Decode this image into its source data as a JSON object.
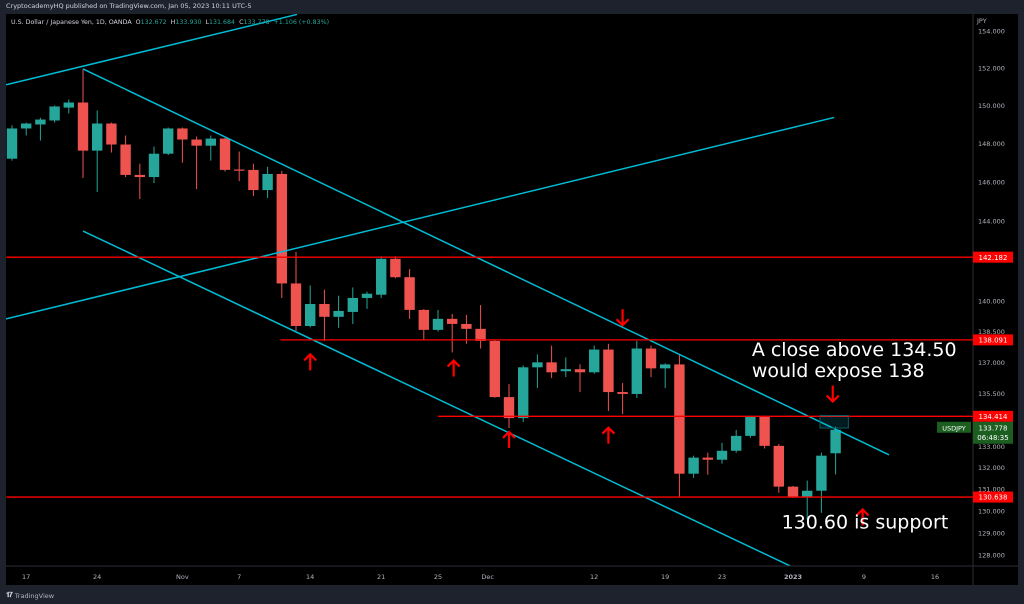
{
  "header": {
    "published": "CryptocademyHQ published on TradingView.com, Jan 05, 2023 10:11 UTC-5"
  },
  "legend": {
    "symbol_desc": "U.S. Dollar / Japanese Yen, 1D, OANDA",
    "o_label": "O",
    "o": "132.672",
    "h_label": "H",
    "h": "133.930",
    "l_label": "L",
    "l": "131.684",
    "c_label": "C",
    "c": "133.778",
    "change": "+1.106 (+0.83%)"
  },
  "footer": {
    "brand": "TradingView",
    "logo": "TV"
  },
  "colors": {
    "up": "#26a69a",
    "down": "#ef5350",
    "trendline": "#00bcd4",
    "level": "#ff0000",
    "annotation": "#ffffff",
    "last_price": "#1b5e20"
  },
  "chart_data": {
    "type": "candlestick",
    "symbol": "USDJPY",
    "currency": "JPY",
    "y_scale": "log",
    "ylim": [
      127.5,
      154.9
    ],
    "y_ticks": [
      "154.000",
      "152.000",
      "150.000",
      "148.000",
      "146.000",
      "144.000",
      "140.000",
      "138.500",
      "137.000",
      "135.500",
      "133.000",
      "132.000",
      "131.000",
      "130.000",
      "129.000",
      "128.000"
    ],
    "x_ticks": [
      {
        "label": "17",
        "bar": 2
      },
      {
        "label": "24",
        "bar": 7
      },
      {
        "label": "Nov",
        "bar": 13
      },
      {
        "label": "7",
        "bar": 17
      },
      {
        "label": "14",
        "bar": 22
      },
      {
        "label": "21",
        "bar": 27
      },
      {
        "label": "25",
        "bar": 31
      },
      {
        "label": "Dec",
        "bar": 34.5
      },
      {
        "label": "12",
        "bar": 42
      },
      {
        "label": "19",
        "bar": 47
      },
      {
        "label": "23",
        "bar": 51
      },
      {
        "label": "2023",
        "bar": 56,
        "bold": true
      },
      {
        "label": "9",
        "bar": 61
      },
      {
        "label": "16",
        "bar": 66
      }
    ],
    "candles": [
      [
        147.21,
        148.95,
        147.11,
        148.79
      ],
      [
        148.79,
        149.1,
        148.42,
        149.05
      ],
      [
        149.0,
        149.35,
        148.16,
        149.26
      ],
      [
        149.21,
        150.0,
        149.1,
        149.95
      ],
      [
        149.89,
        150.32,
        149.58,
        150.16
      ],
      [
        150.16,
        151.95,
        146.21,
        147.63
      ],
      [
        147.63,
        149.74,
        145.49,
        149.05
      ],
      [
        149.05,
        149.1,
        147.53,
        147.95
      ],
      [
        147.95,
        148.42,
        146.26,
        146.37
      ],
      [
        146.37,
        146.95,
        145.13,
        146.26
      ],
      [
        146.26,
        147.84,
        145.95,
        147.47
      ],
      [
        147.47,
        148.84,
        147.4,
        148.79
      ],
      [
        148.79,
        148.84,
        147.0,
        148.21
      ],
      [
        148.21,
        148.37,
        145.64,
        147.89
      ],
      [
        147.89,
        148.42,
        147.11,
        148.26
      ],
      [
        148.26,
        148.3,
        146.55,
        146.63
      ],
      [
        146.65,
        147.58,
        146.05,
        146.6
      ],
      [
        146.63,
        146.95,
        145.28,
        145.59
      ],
      [
        145.59,
        146.79,
        145.18,
        146.42
      ],
      [
        146.42,
        146.58,
        140.15,
        140.87
      ],
      [
        140.87,
        142.45,
        138.53,
        138.77
      ],
      [
        138.77,
        140.77,
        138.7,
        139.85
      ],
      [
        139.85,
        140.56,
        138.04,
        139.22
      ],
      [
        139.22,
        140.26,
        138.68,
        139.51
      ],
      [
        139.46,
        140.67,
        138.87,
        140.15
      ],
      [
        140.15,
        140.46,
        139.61,
        140.36
      ],
      [
        140.31,
        142.23,
        140.15,
        142.1
      ],
      [
        142.1,
        142.23,
        141.13,
        141.18
      ],
      [
        141.18,
        141.59,
        139.12,
        139.56
      ],
      [
        139.56,
        139.6,
        138.09,
        138.58
      ],
      [
        138.58,
        139.56,
        138.5,
        139.12
      ],
      [
        139.12,
        139.36,
        137.48,
        138.87
      ],
      [
        138.87,
        139.31,
        137.9,
        138.63
      ],
      [
        138.63,
        139.8,
        137.67,
        138.04
      ],
      [
        138.04,
        138.1,
        135.3,
        135.33
      ],
      [
        135.33,
        135.95,
        133.86,
        134.33
      ],
      [
        134.33,
        136.85,
        134.14,
        136.76
      ],
      [
        136.76,
        137.38,
        135.76,
        137.0
      ],
      [
        137.0,
        137.81,
        136.24,
        136.52
      ],
      [
        136.57,
        137.24,
        136.29,
        136.67
      ],
      [
        136.67,
        136.9,
        135.57,
        136.52
      ],
      [
        136.52,
        137.81,
        136.45,
        137.62
      ],
      [
        137.62,
        137.9,
        134.67,
        135.57
      ],
      [
        135.57,
        136.0,
        134.52,
        135.48
      ],
      [
        135.48,
        138.04,
        135.29,
        137.67
      ],
      [
        137.67,
        137.81,
        136.29,
        136.71
      ],
      [
        136.71,
        136.95,
        135.76,
        136.9
      ],
      [
        136.9,
        137.38,
        130.65,
        131.72
      ],
      [
        131.72,
        132.56,
        131.53,
        132.47
      ],
      [
        132.47,
        132.7,
        131.67,
        132.37
      ],
      [
        132.37,
        133.16,
        132.19,
        132.79
      ],
      [
        132.79,
        133.77,
        132.7,
        133.49
      ],
      [
        133.49,
        134.45,
        133.4,
        134.43
      ],
      [
        134.43,
        134.45,
        132.9,
        133.02
      ],
      [
        133.02,
        133.1,
        130.84,
        131.12
      ],
      [
        131.12,
        131.15,
        130.6,
        130.65
      ],
      [
        130.65,
        131.4,
        129.59,
        130.93
      ],
      [
        130.93,
        132.7,
        129.91,
        132.56
      ],
      [
        132.672,
        133.93,
        131.684,
        133.778
      ]
    ],
    "candle_fields": [
      "open",
      "high",
      "low",
      "close"
    ],
    "levels": [
      {
        "price": 142.182,
        "label": "142.182",
        "from_bar": 0.6
      },
      {
        "price": 138.091,
        "label": "138.091",
        "from_bar": 19.9
      },
      {
        "price": 134.414,
        "label": "134.414",
        "from_bar": 31.0
      },
      {
        "price": 130.638,
        "label": "130.638",
        "from_bar": 0.6
      }
    ],
    "trendlines": [
      {
        "name": "upper-rising-line",
        "p1": [
          0.58,
          151.1
        ],
        "p2": [
          21.07,
          154.9
        ]
      },
      {
        "name": "channel-upper-line",
        "p1": [
          6.0,
          151.95
        ],
        "p2": [
          62.76,
          132.6
        ]
      },
      {
        "name": "channel-lower-line",
        "p1": [
          6.0,
          143.5
        ],
        "p2": [
          55.8,
          127.5
        ]
      },
      {
        "name": "rising-line",
        "p1": [
          0.58,
          139.12
        ],
        "p2": [
          58.9,
          149.37
        ]
      }
    ],
    "arrows": [
      {
        "dir": "up",
        "bar": 22.0,
        "price": 137.0
      },
      {
        "dir": "up",
        "bar": 32.1,
        "price": 136.7
      },
      {
        "dir": "up",
        "bar": 36.0,
        "price": 133.3
      },
      {
        "dir": "up",
        "bar": 43.0,
        "price": 133.5
      },
      {
        "dir": "down",
        "bar": 44.0,
        "price": 139.2
      },
      {
        "dir": "down",
        "bar": 58.8,
        "price": 135.5
      },
      {
        "dir": "up",
        "bar": 60.9,
        "price": 129.7
      }
    ],
    "highlight_box": {
      "bar_from": 57.9,
      "bar_to": 59.9,
      "price_top": 134.45,
      "price_bottom": 133.86
    },
    "annotations": [
      {
        "lines": [
          "A close above 134.50",
          "would expose 138"
        ],
        "bar": 53.1,
        "price": 137.3
      },
      {
        "lines": [
          "130.60 is support"
        ],
        "bar": 55.2,
        "price": 129.2
      }
    ],
    "last_price": {
      "symbol": "USDJPY",
      "price": "133.778",
      "countdown": "06:48:35",
      "value": 133.778
    }
  }
}
